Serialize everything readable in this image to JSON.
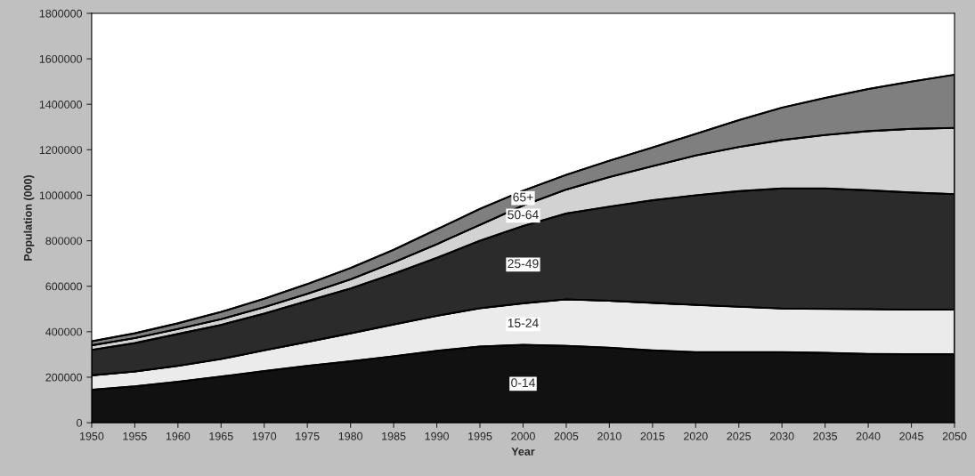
{
  "chart_data": {
    "type": "area",
    "stacked": true,
    "xlabel": "Year",
    "ylabel": "Population (000)",
    "x": [
      1950,
      1955,
      1960,
      1965,
      1970,
      1975,
      1980,
      1985,
      1990,
      1995,
      2000,
      2005,
      2010,
      2015,
      2020,
      2025,
      2030,
      2035,
      2040,
      2045,
      2050
    ],
    "series": [
      {
        "name": "0-14",
        "color": "#111111",
        "values": [
          145000,
          160000,
          180000,
          203000,
          227000,
          250000,
          270000,
          292000,
          316000,
          335000,
          342000,
          338000,
          330000,
          318000,
          310000,
          310000,
          310000,
          307000,
          302000,
          301000,
          301000
        ]
      },
      {
        "name": "15-24",
        "color": "#ebebeb",
        "values": [
          63000,
          65000,
          70000,
          77000,
          91000,
          105000,
          123000,
          140000,
          154000,
          168000,
          183000,
          204000,
          206000,
          209000,
          208000,
          200000,
          192000,
          193000,
          197000,
          196000,
          196000
        ]
      },
      {
        "name": "25-49",
        "color": "#2b2b2b",
        "values": [
          112000,
          125000,
          140000,
          150000,
          162000,
          180000,
          197000,
          223000,
          255000,
          297000,
          340000,
          378000,
          414000,
          451000,
          482000,
          508000,
          528000,
          530000,
          523000,
          515000,
          508000
        ]
      },
      {
        "name": "50-64",
        "color": "#d2d2d2",
        "values": [
          20000,
          22000,
          22000,
          25000,
          28000,
          32000,
          40000,
          50000,
          60000,
          70000,
          90000,
          105000,
          130000,
          150000,
          175000,
          194000,
          213000,
          235000,
          260000,
          280000,
          291000
        ]
      },
      {
        "name": "65+",
        "color": "#7f7f7f",
        "values": [
          18000,
          21000,
          25000,
          32000,
          37000,
          43000,
          50000,
          55000,
          65000,
          70000,
          65000,
          65000,
          72000,
          82000,
          95000,
          118000,
          142000,
          163000,
          185000,
          208000,
          234000
        ]
      }
    ],
    "xlim": [
      1950,
      2050
    ],
    "xticks": [
      1950,
      1955,
      1960,
      1965,
      1970,
      1975,
      1980,
      1985,
      1990,
      1995,
      2000,
      2005,
      2010,
      2015,
      2020,
      2025,
      2030,
      2035,
      2040,
      2045,
      2050
    ],
    "ylim": [
      0,
      1800000
    ],
    "yticks": [
      0,
      200000,
      400000,
      600000,
      800000,
      1000000,
      1200000,
      1400000,
      1600000,
      1800000
    ],
    "grid": false,
    "legend": false
  }
}
